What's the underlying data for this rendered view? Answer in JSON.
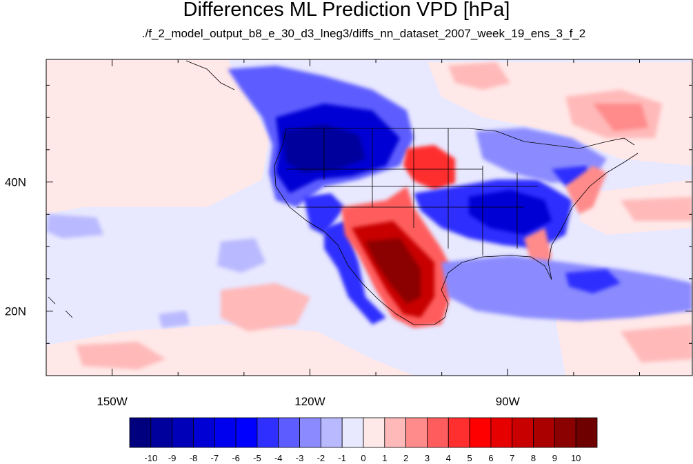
{
  "title": "Differences ML Prediction VPD [hPa]",
  "subtitle": "./f_2_model_output_b8_e_30_d3_lneg3/diffs_nn_dataset_2007_week_19_ens_3_f_2",
  "map": {
    "lon_range": [
      -160,
      -62
    ],
    "lat_range": [
      10,
      59
    ],
    "lon_ticks": [
      {
        "value": -150,
        "label": "150W"
      },
      {
        "value": -120,
        "label": "120W"
      },
      {
        "value": -90,
        "label": "90W"
      }
    ],
    "lat_ticks": [
      {
        "value": 40,
        "label": "40N"
      },
      {
        "value": 20,
        "label": "20N"
      }
    ]
  },
  "colorbar": {
    "labels": [
      "-10",
      "-9",
      "-8",
      "-7",
      "-6",
      "-5",
      "-4",
      "-3",
      "-2",
      "-1",
      "0",
      "1",
      "2",
      "3",
      "4",
      "5",
      "6",
      "7",
      "8",
      "9",
      "10"
    ],
    "colors": [
      "#00007f",
      "#00009c",
      "#0000b8",
      "#0000d4",
      "#0000ee",
      "#0000ff",
      "#2f2fff",
      "#5d5dff",
      "#8b8bff",
      "#b9b9ff",
      "#e8e8ff",
      "#ffe8e8",
      "#ffb9b9",
      "#ff8b8b",
      "#ff5d5d",
      "#ff2f2f",
      "#ff0000",
      "#e60000",
      "#c80000",
      "#aa0000",
      "#8b0000",
      "#6e0000"
    ]
  }
}
